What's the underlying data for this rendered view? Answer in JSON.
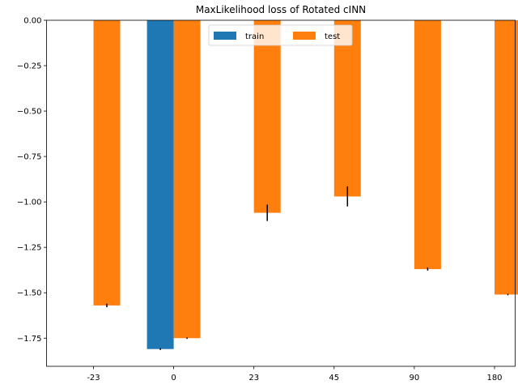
{
  "chart_data": {
    "type": "bar",
    "title": "MaxLikelihood loss of Rotated cINN",
    "xlabel": "",
    "ylabel": "",
    "categories": [
      "-23",
      "0",
      "23",
      "45",
      "90",
      "180"
    ],
    "ylim": [
      -1.905,
      0.0
    ],
    "yticks": [
      0.0,
      -0.25,
      -0.5,
      -0.75,
      -1.0,
      -1.25,
      -1.5,
      -1.75
    ],
    "ytick_labels": [
      "0.00",
      "−0.25",
      "−0.50",
      "−0.75",
      "−1.00",
      "−1.25",
      "−1.50",
      "−1.75"
    ],
    "series": [
      {
        "name": "train",
        "color": "#1f77b4",
        "values": [
          null,
          -1.81,
          null,
          null,
          null,
          null
        ],
        "errors": [
          null,
          0.005,
          null,
          null,
          null,
          null
        ]
      },
      {
        "name": "test",
        "color": "#ff7f0e",
        "values": [
          -1.57,
          -1.75,
          -1.06,
          -0.97,
          -1.37,
          -1.51
        ],
        "errors": [
          0.01,
          0.004,
          0.045,
          0.055,
          0.008,
          0.004
        ]
      }
    ],
    "legend": {
      "position": "top-center",
      "columns": 2
    },
    "grid": false
  }
}
